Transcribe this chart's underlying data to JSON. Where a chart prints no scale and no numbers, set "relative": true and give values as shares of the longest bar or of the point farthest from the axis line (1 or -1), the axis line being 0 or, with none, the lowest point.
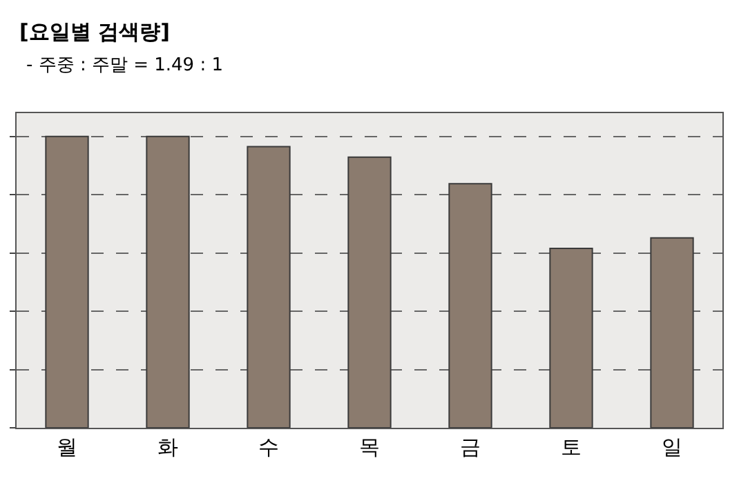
{
  "chart_data": {
    "type": "bar",
    "title": "[요일별 검색량]",
    "subtitle": "- 주중 : 주말 = 1.49 : 1",
    "categories": [
      "월",
      "화",
      "수",
      "목",
      "금",
      "토",
      "일"
    ],
    "values": [
      1,
      1,
      0.965,
      0.929,
      0.838,
      0.616,
      0.652
    ],
    "color": "#8b7b6e",
    "relative": true,
    "grid": "y"
  }
}
